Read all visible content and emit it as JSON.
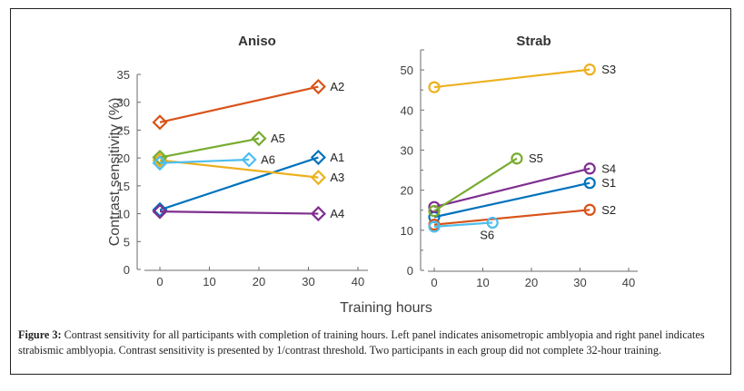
{
  "chart_data": [
    {
      "type": "line",
      "title": "Aniso",
      "xlabel": "Training hours",
      "ylabel": "Contrast sensitivity (%)",
      "xlim": [
        0,
        40
      ],
      "ylim": [
        0,
        35
      ],
      "xticks": [
        0,
        10,
        20,
        30,
        40
      ],
      "yticks": [
        0,
        5,
        10,
        15,
        20,
        25,
        30,
        35
      ],
      "marker": "diamond",
      "grid": false,
      "series": [
        {
          "name": "A1",
          "color": "#0072BD",
          "x": [
            0,
            32
          ],
          "y": [
            10.7,
            20.1
          ]
        },
        {
          "name": "A2",
          "color": "#D95319",
          "x": [
            0,
            32
          ],
          "y": [
            26.4,
            32.8
          ]
        },
        {
          "name": "A3",
          "color": "#EDB120",
          "x": [
            0,
            32
          ],
          "y": [
            19.6,
            16.5
          ]
        },
        {
          "name": "A4",
          "color": "#7E2F8E",
          "x": [
            0,
            32
          ],
          "y": [
            10.4,
            10.0
          ]
        },
        {
          "name": "A5",
          "color": "#77AC30",
          "x": [
            0,
            20
          ],
          "y": [
            20.1,
            23.5
          ]
        },
        {
          "name": "A6",
          "color": "#4DBEEE",
          "x": [
            0,
            18
          ],
          "y": [
            19.1,
            19.7
          ]
        }
      ]
    },
    {
      "type": "line",
      "title": "Strab",
      "xlabel": "Training hours",
      "ylabel": "",
      "xlim": [
        0,
        40
      ],
      "ylim": [
        0,
        55
      ],
      "xticks": [
        0,
        10,
        20,
        30,
        40
      ],
      "yticks": [
        0,
        10,
        20,
        30,
        40,
        50
      ],
      "marker": "circle",
      "grid": false,
      "series": [
        {
          "name": "S1",
          "color": "#0072BD",
          "x": [
            0,
            32
          ],
          "y": [
            13.3,
            21.8
          ]
        },
        {
          "name": "S2",
          "color": "#D95319",
          "x": [
            0,
            32
          ],
          "y": [
            11.4,
            15.1
          ]
        },
        {
          "name": "S3",
          "color": "#EDB120",
          "x": [
            0,
            32
          ],
          "y": [
            45.7,
            50.1
          ]
        },
        {
          "name": "S4",
          "color": "#7E2F8E",
          "x": [
            0,
            32
          ],
          "y": [
            15.8,
            25.4
          ]
        },
        {
          "name": "S5",
          "color": "#77AC30",
          "x": [
            0,
            17
          ],
          "y": [
            14.8,
            27.9
          ]
        },
        {
          "name": "S6",
          "color": "#4DBEEE",
          "x": [
            0,
            12
          ],
          "y": [
            10.9,
            11.9
          ]
        }
      ]
    }
  ],
  "shared_xlabel": "Training hours",
  "caption": {
    "label": "Figure 3:",
    "text": " Contrast sensitivity for all participants with completion of training hours. Left panel indicates anisometropic amblyopia and right panel indicates strabismic amblyopia. Contrast sensitivity is presented by 1/contrast threshold. Two participants in each group did not complete 32-hour training."
  }
}
